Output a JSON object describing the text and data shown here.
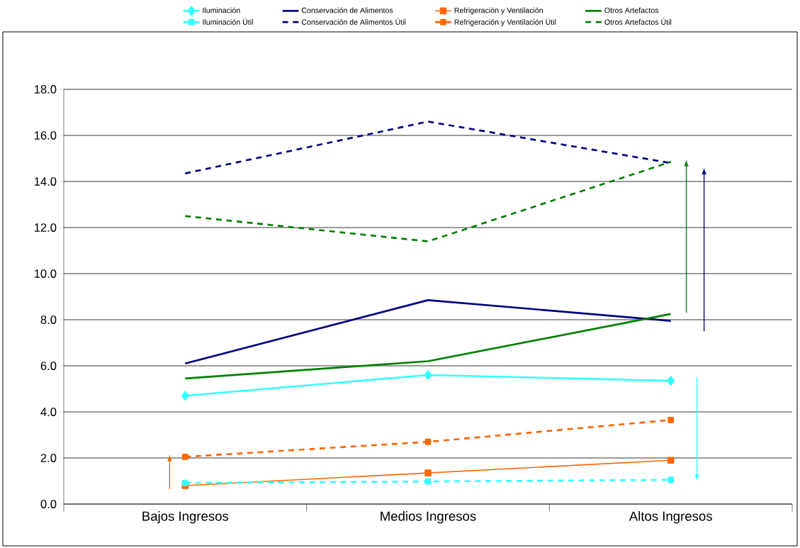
{
  "chart_data": {
    "type": "line",
    "categories": [
      "Bajos Ingresos",
      "Medios Ingresos",
      "Altos Ingresos"
    ],
    "ylim": [
      0,
      18
    ],
    "yticks": [
      {
        "value": 0,
        "label": "0.0"
      },
      {
        "value": 2,
        "label": "2.0"
      },
      {
        "value": 4,
        "label": "4.0"
      },
      {
        "value": 6,
        "label": "6.0"
      },
      {
        "value": 8,
        "label": "8.0"
      },
      {
        "value": 10,
        "label": "10.0"
      },
      {
        "value": 12,
        "label": "12.0"
      },
      {
        "value": 14,
        "label": "14.0"
      },
      {
        "value": 16,
        "label": "16.0"
      },
      {
        "value": 18,
        "label": "18.0"
      }
    ],
    "grid": "y",
    "legend": "top",
    "series": [
      {
        "name": "Iluminación",
        "color": "#33ffff",
        "marker": "diamond",
        "line_style": "solid",
        "values": [
          4.7,
          5.6,
          5.35
        ]
      },
      {
        "name": "Conservación de Alimentos",
        "color": "#000080",
        "marker": "none",
        "line_style": "solid",
        "values": [
          6.1,
          8.85,
          7.95
        ]
      },
      {
        "name": "Refrigeración y Ventilación",
        "color": "#ff6600",
        "marker": "square",
        "line_style": "solid",
        "values": [
          0.8,
          1.35,
          1.9
        ]
      },
      {
        "name": "Otros Artefactos",
        "color": "#008000",
        "marker": "none",
        "line_style": "solid",
        "values": [
          5.45,
          6.2,
          8.25
        ]
      },
      {
        "name": "Iluminación Útil",
        "color": "#33ffff",
        "marker": "square",
        "line_style": "dashed",
        "values": [
          0.92,
          0.98,
          1.05
        ]
      },
      {
        "name": "Conservación de Alimentos Útil",
        "color": "#000080",
        "marker": "none",
        "line_style": "dashed",
        "values": [
          14.35,
          16.6,
          14.8
        ]
      },
      {
        "name": "Refrigeración y Ventilación Útil",
        "color": "#ff6600",
        "marker": "square",
        "line_style": "dashed",
        "values": [
          2.05,
          2.7,
          3.65
        ]
      },
      {
        "name": "Otros Artefactos Útil",
        "color": "#008000",
        "marker": "none",
        "line_style": "dashed",
        "values": [
          12.5,
          11.4,
          14.85
        ]
      }
    ]
  }
}
